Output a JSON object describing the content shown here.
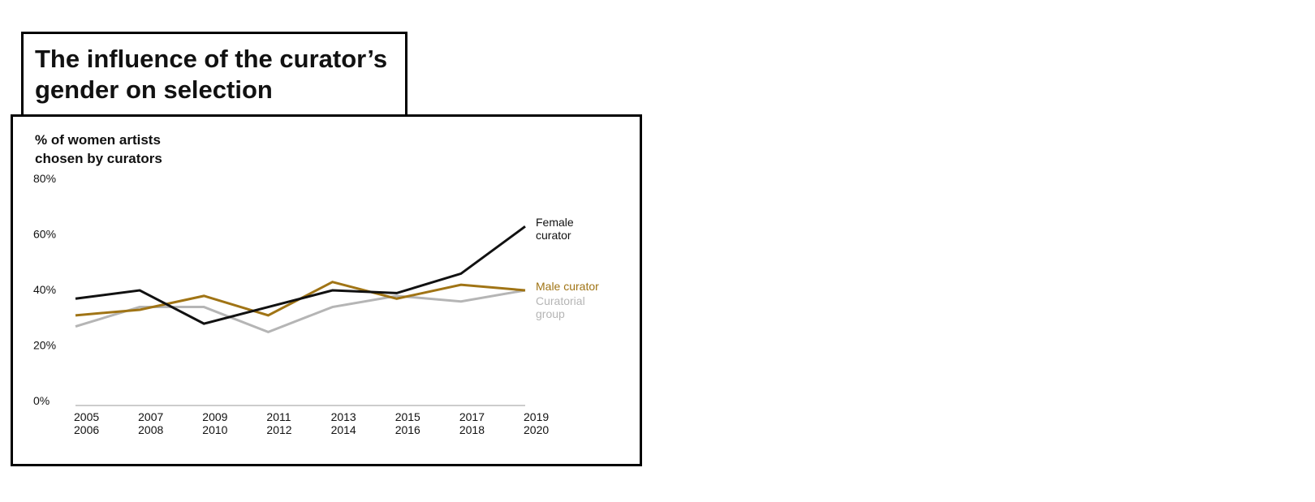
{
  "title_lines": [
    "The influence of the curator’s",
    "gender on selection"
  ],
  "chart_data": {
    "type": "line",
    "ylabel_lines": [
      "% of women artists",
      "chosen by curators"
    ],
    "ylim": [
      0,
      80
    ],
    "y_ticks": [
      0,
      20,
      40,
      60,
      80
    ],
    "y_tick_labels": [
      "0%",
      "20%",
      "40%",
      "60%",
      "80%"
    ],
    "categories": [
      [
        "2005",
        "2006"
      ],
      [
        "2007",
        "2008"
      ],
      [
        "2009",
        "2010"
      ],
      [
        "2011",
        "2012"
      ],
      [
        "2013",
        "2014"
      ],
      [
        "2015",
        "2016"
      ],
      [
        "2017",
        "2018"
      ],
      [
        "2019",
        "2020"
      ]
    ],
    "grid": false,
    "legend": "direct labels at line ends (right)",
    "series": [
      {
        "name_lines": [
          "Curatorial",
          "group"
        ],
        "color": "#b5b5b5",
        "values": [
          27,
          34,
          34,
          25,
          34,
          38,
          36,
          40
        ]
      },
      {
        "name_lines": [
          "Male curator"
        ],
        "color": "#a07415",
        "values": [
          31,
          33,
          38,
          31,
          43,
          37,
          42,
          40
        ]
      },
      {
        "name_lines": [
          "Female",
          "curator"
        ],
        "color": "#111111",
        "values": [
          37,
          40,
          28,
          34,
          40,
          39,
          46,
          63
        ]
      }
    ],
    "colors": {
      "baseline": "#cccccc",
      "text": "#111111"
    }
  }
}
